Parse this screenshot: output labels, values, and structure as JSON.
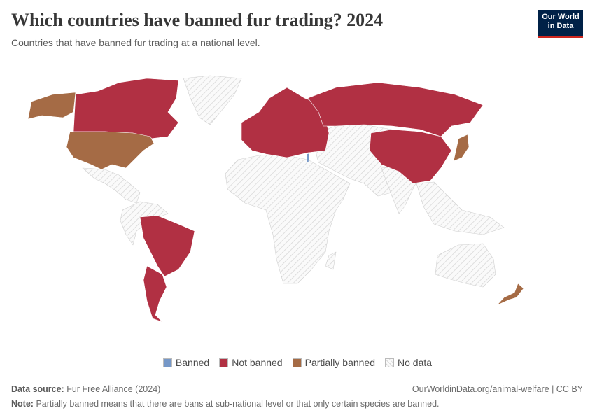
{
  "header": {
    "title": "Which countries have banned fur trading? 2024",
    "subtitle": "Countries that have banned fur trading at a national level.",
    "logo": [
      "Our World",
      "in Data"
    ]
  },
  "legend": [
    {
      "label": "Banned",
      "color": "#7698c8"
    },
    {
      "label": "Not banned",
      "color": "#b13043"
    },
    {
      "label": "Partially banned",
      "color": "#a56b45"
    },
    {
      "label": "No data",
      "color": "#eeeeee"
    }
  ],
  "footer": {
    "source_label": "Data source:",
    "source": "Fur Free Alliance (2024)",
    "url": "OurWorldinData.org/animal-welfare | CC BY",
    "note_label": "Note:",
    "note": "Partially banned means that there are bans at sub-national level or that only certain species are banned."
  }
}
